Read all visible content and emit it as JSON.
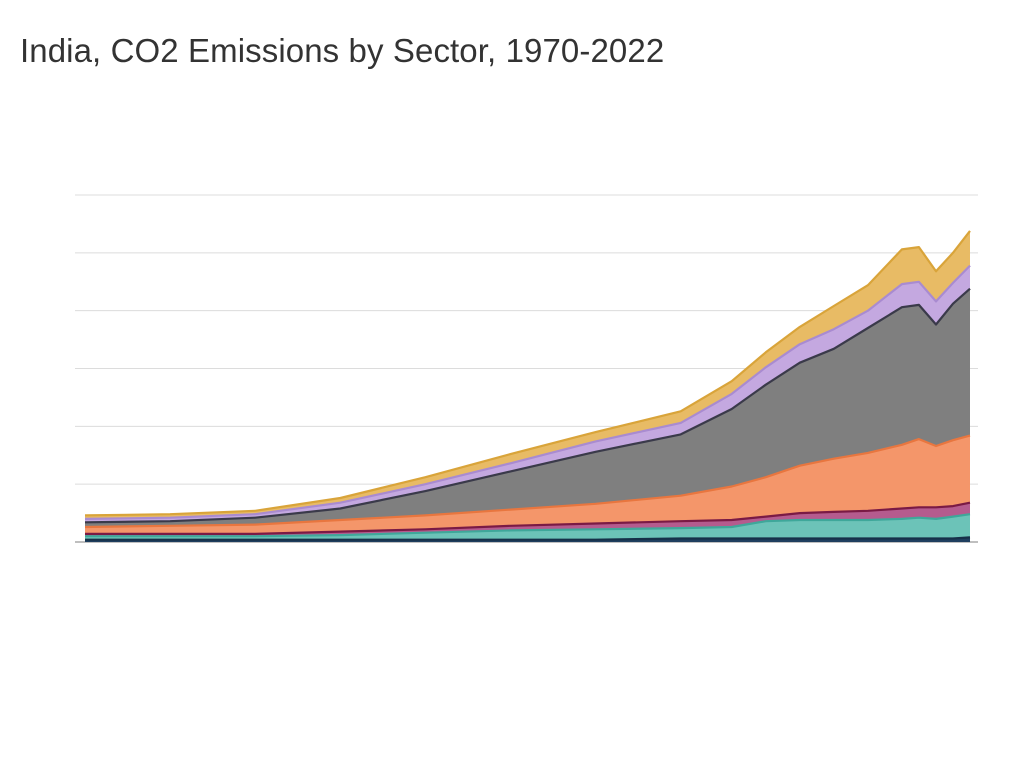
{
  "title": "India, CO2 Emissions by Sector, 1970-2022",
  "chart_data": {
    "type": "area",
    "stacked": true,
    "title": "India, CO2 Emissions by Sector, 1970-2022",
    "xlabel": "",
    "ylabel": "",
    "xlim": [
      1970,
      2022
    ],
    "ylim": [
      0,
      3000
    ],
    "grid": true,
    "legend": "none",
    "x": [
      1970,
      1975,
      1980,
      1985,
      1990,
      1995,
      2000,
      2005,
      2008,
      2010,
      2012,
      2014,
      2016,
      2018,
      2019,
      2020,
      2021,
      2022
    ],
    "series": [
      {
        "fill": "#1f3f5f",
        "line": "#163049",
        "values": [
          20,
          20,
          20,
          20,
          20,
          20,
          20,
          30,
          30,
          30,
          30,
          30,
          30,
          30,
          30,
          30,
          30,
          40
        ]
      },
      {
        "fill": "#6cc3b8",
        "line": "#3fa79a",
        "values": [
          30,
          30,
          30,
          40,
          60,
          80,
          90,
          90,
          100,
          150,
          160,
          160,
          160,
          170,
          180,
          170,
          190,
          200
        ]
      },
      {
        "fill": "#b55b8e",
        "line": "#7a1a45",
        "values": [
          20,
          20,
          20,
          30,
          30,
          40,
          50,
          60,
          60,
          40,
          60,
          70,
          80,
          90,
          90,
          100,
          90,
          100
        ]
      },
      {
        "fill": "#f4966a",
        "line": "#e8763f",
        "values": [
          60,
          70,
          80,
          100,
          120,
          140,
          170,
          220,
          290,
          340,
          410,
          460,
          500,
          550,
          590,
          530,
          570,
          580
        ]
      },
      {
        "fill": "#7f7f7f",
        "line": "#3a3a4a",
        "values": [
          40,
          40,
          60,
          100,
          210,
          330,
          450,
          530,
          670,
          800,
          890,
          950,
          1080,
          1190,
          1160,
          1050,
          1180,
          1270
        ]
      },
      {
        "fill": "#c4a8e0",
        "line": "#a98bd0",
        "values": [
          30,
          30,
          30,
          50,
          60,
          70,
          90,
          100,
          130,
          150,
          160,
          170,
          150,
          200,
          200,
          200,
          180,
          200
        ]
      },
      {
        "fill": "#e8bb65",
        "line": "#d9a43a",
        "values": [
          30,
          30,
          30,
          40,
          60,
          80,
          80,
          100,
          110,
          130,
          150,
          200,
          220,
          300,
          300,
          260,
          260,
          300
        ]
      }
    ]
  }
}
